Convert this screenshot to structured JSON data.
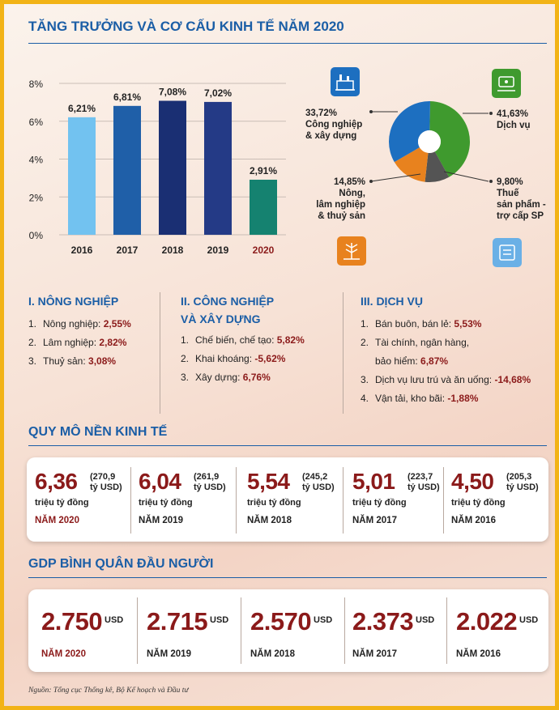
{
  "title": "TĂNG TRƯỞNG VÀ CƠ CẤU KINH TẾ NĂM 2020",
  "chart_data": [
    {
      "type": "bar",
      "categories": [
        "2016",
        "2017",
        "2018",
        "2019",
        "2020"
      ],
      "values": [
        6.21,
        6.81,
        7.08,
        7.02,
        2.91
      ],
      "value_labels": [
        "6,21%",
        "6,81%",
        "7,08%",
        "7,02%",
        "2,91%"
      ],
      "ylabel": "",
      "xlabel": "",
      "ylim": [
        0,
        8
      ],
      "yticks": [
        0,
        2,
        4,
        6,
        8
      ],
      "ytick_labels": [
        "0%",
        "2%",
        "4%",
        "6%",
        "8%"
      ],
      "bar_colors": [
        "#72c2f0",
        "#1f5fa8",
        "#1a2f73",
        "#243a86",
        "#158270"
      ],
      "grid": true
    },
    {
      "type": "pie",
      "slices": [
        {
          "name": "Dịch vụ",
          "value": 41.63,
          "label": "41,63%",
          "color": "#3f9a2e"
        },
        {
          "name": "Thuế sản phẩm - trợ cấp SP",
          "value": 9.8,
          "label": "9,80%",
          "color": "#545454"
        },
        {
          "name": "Nông, lâm nghiệp & thuỷ sản",
          "value": 14.85,
          "label": "14,85%",
          "color": "#e8821e"
        },
        {
          "name": "Công nghiệp & xây dựng",
          "value": 33.72,
          "label": "33,72%",
          "color": "#1d6fc0"
        }
      ],
      "labels_text": {
        "cn_pct": "33,72%",
        "cn_line1": "Công nghiệp",
        "cn_line2": "& xây dựng",
        "dv_pct": "41,63%",
        "dv_line1": "Dịch vụ",
        "nn_pct": "14,85%",
        "nn_line1": "Nông,",
        "nn_line2": "lâm nghiệp",
        "nn_line3": "& thuỷ sản",
        "thue_pct": "9,80%",
        "thue_line1": "Thuế",
        "thue_line2": "sản phẩm -",
        "thue_line3": "trợ cấp SP"
      }
    }
  ],
  "sectors": {
    "agri": {
      "title": "I. NÔNG NGHIỆP",
      "items": [
        {
          "num": "1.",
          "label": "Nông nghiệp: ",
          "value": "2,55%"
        },
        {
          "num": "2.",
          "label": "Lâm nghiệp: ",
          "value": "2,82%"
        },
        {
          "num": "3.",
          "label": "Thuỷ sản: ",
          "value": "3,08%"
        }
      ]
    },
    "industry": {
      "title1": "II. CÔNG NGHIỆP",
      "title2": "VÀ XÂY DỰNG",
      "items": [
        {
          "num": "1.",
          "label": "Chế biến, chế tạo: ",
          "value": "5,82%"
        },
        {
          "num": "2.",
          "label": "Khai khoáng: ",
          "value": "-5,62%"
        },
        {
          "num": "3.",
          "label": "Xây dựng: ",
          "value": "6,76%"
        }
      ]
    },
    "service": {
      "title": "III. DỊCH VỤ",
      "items": [
        {
          "num": "1.",
          "label": "Bán buôn, bán lẻ: ",
          "value": "5,53%"
        },
        {
          "num": "2.",
          "label": "Tài chính, ngân hàng,",
          "label2": "bảo hiểm: ",
          "value": "6,87%"
        },
        {
          "num": "3.",
          "label": "Dịch vụ lưu trú và ăn uống: ",
          "value": "-14,68%"
        },
        {
          "num": "4.",
          "label": "Vận tải, kho bãi: ",
          "value": "-1,88%"
        }
      ]
    }
  },
  "economy_scale": {
    "title": "QUY MÔ NỀN KINH TẾ",
    "unit": "triệu tỷ đồng",
    "items": [
      {
        "value": "6,36",
        "usd": "(270,9",
        "usd_unit": "tỷ USD)",
        "year": "NĂM 2020"
      },
      {
        "value": "6,04",
        "usd": "(261,9",
        "usd_unit": "tỷ USD)",
        "year": "NĂM 2019"
      },
      {
        "value": "5,54",
        "usd": "(245,2",
        "usd_unit": "tỷ USD)",
        "year": "NĂM 2018"
      },
      {
        "value": "5,01",
        "usd": "(223,7",
        "usd_unit": "tỷ USD)",
        "year": "NĂM 2017"
      },
      {
        "value": "4,50",
        "usd": "(205,3",
        "usd_unit": "tỷ USD)",
        "year": "NĂM 2016"
      }
    ]
  },
  "gdp_per_capita": {
    "title": "GDP BÌNH QUÂN ĐẦU NGƯỜI",
    "unit": "USD",
    "items": [
      {
        "value": "2.750",
        "year": "NĂM 2020"
      },
      {
        "value": "2.715",
        "year": "NĂM 2019"
      },
      {
        "value": "2.570",
        "year": "NĂM 2018"
      },
      {
        "value": "2.373",
        "year": "NĂM 2017"
      },
      {
        "value": "2.022",
        "year": "NĂM 2016"
      }
    ]
  },
  "source": "Nguồn: Tổng cục Thống kê, Bộ Kế hoạch và Đầu tư",
  "colors": {
    "accent": "#1b5ea6",
    "value_red": "#8b1a1a",
    "border": "#f2b316"
  }
}
